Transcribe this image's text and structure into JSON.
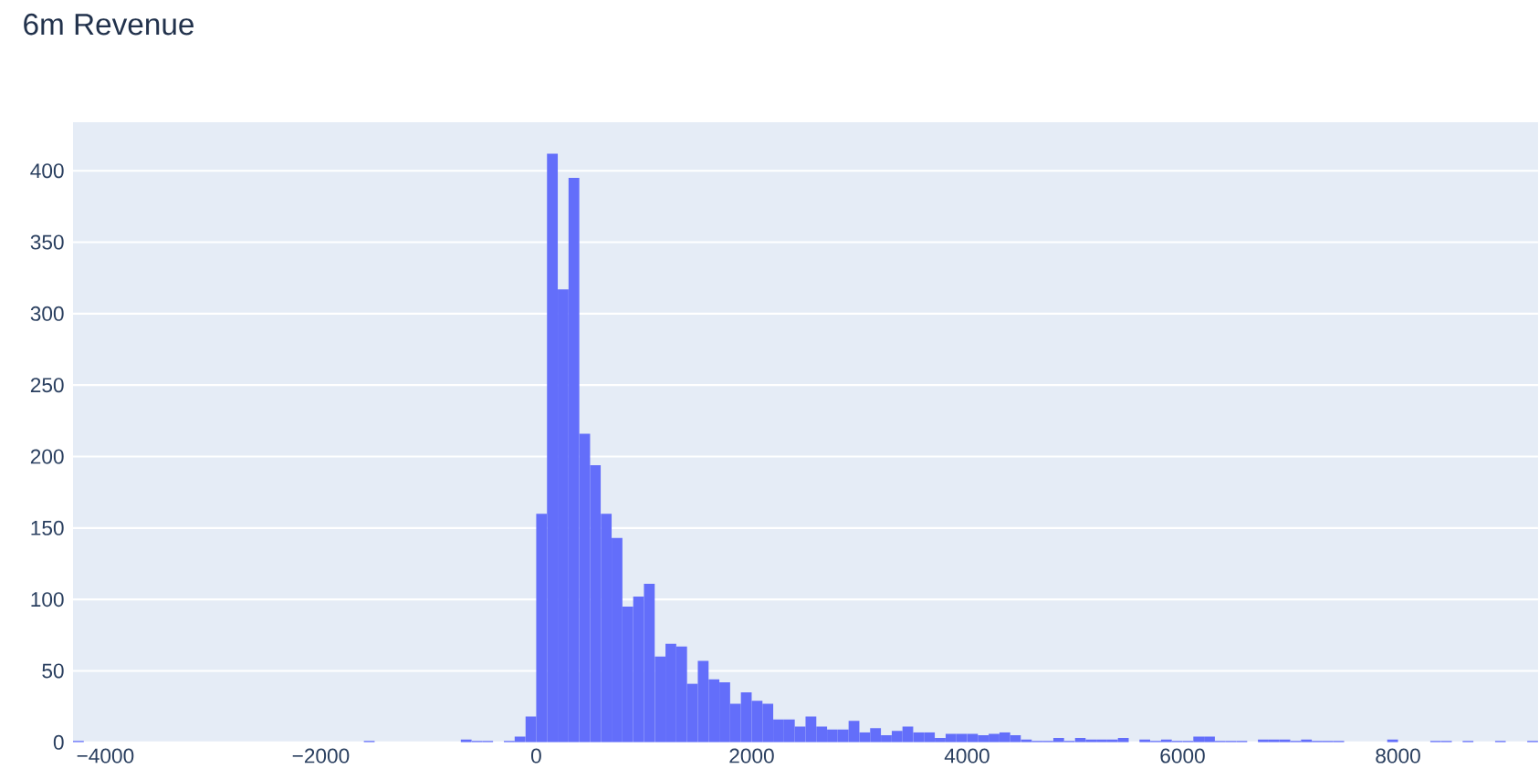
{
  "chart_data": {
    "type": "histogram",
    "title": "6m Revenue",
    "color": "#636efa",
    "bins": [
      -4300,
      -4200,
      -4100,
      -4000,
      -3900,
      -3800,
      -3700,
      -3600,
      -3500,
      -3400,
      -3300,
      -3200,
      -3100,
      -3000,
      -2900,
      -2800,
      -2700,
      -2600,
      -2500,
      -2400,
      -2300,
      -2200,
      -2100,
      -2000,
      -1900,
      -1800,
      -1700,
      -1600,
      -1500,
      -1400,
      -1300,
      -1200,
      -1100,
      -1000,
      -900,
      -800,
      -700,
      -600,
      -500,
      -400,
      -300,
      -200,
      -100,
      0,
      100,
      200,
      300,
      400,
      500,
      600,
      700,
      800,
      900,
      1000,
      1100,
      1200,
      1300,
      1400,
      1500,
      1600,
      1700,
      1800,
      1900,
      2000,
      2100,
      2200,
      2300,
      2400,
      2500,
      2600,
      2700,
      2800,
      2900,
      3000,
      3100,
      3200,
      3300,
      3400,
      3500,
      3600,
      3700,
      3800,
      3900,
      4000,
      4100,
      4200,
      4300,
      4400,
      4500,
      4600,
      4700,
      4800,
      4900,
      5000,
      5100,
      5200,
      5300,
      5400,
      5500,
      5600,
      5700,
      5800,
      5900,
      6000,
      6100,
      6200,
      6300,
      6400,
      6500,
      6600,
      6700,
      6800,
      6900,
      7000,
      7100,
      7200,
      7300,
      7400,
      7500,
      7600,
      7700,
      7800,
      7900,
      8000,
      8100,
      8200,
      8300,
      8400,
      8500,
      8600,
      8700,
      8800,
      8900,
      9000,
      9100,
      9200,
      9300
    ],
    "values": [
      1,
      0,
      0,
      0,
      0,
      0,
      0,
      0,
      0,
      0,
      0,
      0,
      0,
      0,
      0,
      0,
      0,
      0,
      0,
      0,
      0,
      0,
      0,
      0,
      0,
      0,
      0,
      1,
      0,
      0,
      0,
      0,
      0,
      0,
      0,
      0,
      2,
      1,
      1,
      0,
      1,
      4,
      18,
      160,
      412,
      317,
      395,
      216,
      194,
      160,
      143,
      95,
      102,
      111,
      60,
      69,
      67,
      41,
      57,
      44,
      42,
      27,
      35,
      29,
      27,
      16,
      16,
      11,
      18,
      11,
      9,
      9,
      15,
      7,
      10,
      5,
      8,
      11,
      7,
      7,
      3,
      6,
      6,
      6,
      5,
      6,
      7,
      5,
      2,
      1,
      1,
      3,
      1,
      3,
      2,
      2,
      2,
      3,
      0,
      2,
      1,
      2,
      1,
      1,
      4,
      4,
      1,
      1,
      1,
      0,
      2,
      2,
      2,
      1,
      2,
      1,
      1,
      1,
      0,
      0,
      0,
      0,
      2,
      0,
      0,
      0,
      1,
      1,
      0,
      1,
      0,
      0,
      1,
      0,
      0,
      1
    ],
    "xlim": [
      -4300,
      9300
    ],
    "ylim": [
      0,
      434
    ],
    "xticks": [
      {
        "value": -4000,
        "label": "−4000"
      },
      {
        "value": -2000,
        "label": "−2000"
      },
      0,
      2000,
      4000,
      6000,
      8000
    ],
    "yticks": [
      0,
      50,
      100,
      150,
      200,
      250,
      300,
      350,
      400
    ],
    "grid": "y"
  }
}
